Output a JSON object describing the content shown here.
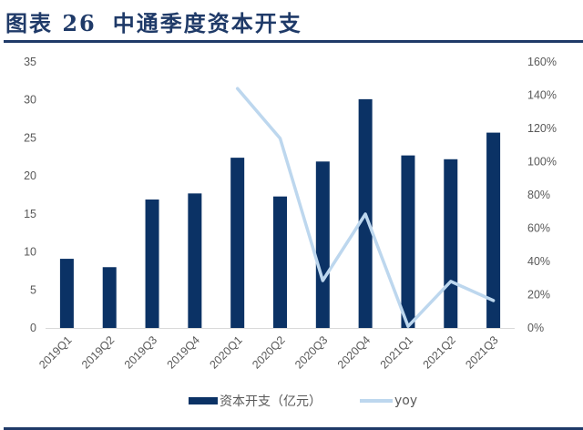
{
  "title": {
    "label": "图表 26",
    "text": "中通季度资本开支"
  },
  "colors": {
    "bar": "#0b3265",
    "line": "#bdd7ee",
    "title": "#1f3a68",
    "axis_text": "#595959",
    "axis_line": "#d9d9d9"
  },
  "legend": {
    "bar_label": "资本开支（亿元）",
    "line_label": "yoy"
  },
  "chart_data": {
    "type": "bar+line",
    "title": "中通季度资本开支",
    "categories": [
      "2019Q1",
      "2019Q2",
      "2019Q3",
      "2019Q4",
      "2020Q1",
      "2020Q2",
      "2020Q3",
      "2020Q4",
      "2021Q1",
      "2021Q2",
      "2021Q3"
    ],
    "series": [
      {
        "name": "资本开支（亿元）",
        "type": "bar",
        "axis": "left",
        "values": [
          9.1,
          8.0,
          16.9,
          17.7,
          22.4,
          17.3,
          21.9,
          30.1,
          22.7,
          22.2,
          25.7
        ]
      },
      {
        "name": "yoy",
        "type": "line",
        "axis": "right",
        "values": [
          null,
          null,
          null,
          null,
          144,
          114,
          28.5,
          68.5,
          1,
          28,
          16.5
        ],
        "unit": "%"
      }
    ],
    "y_left": {
      "min": 0,
      "max": 35,
      "ticks": [
        "0",
        "5",
        "10",
        "15",
        "20",
        "25",
        "30",
        "35"
      ]
    },
    "y_right": {
      "min": 0,
      "max": 160,
      "ticks": [
        "0%",
        "20%",
        "40%",
        "60%",
        "80%",
        "100%",
        "120%",
        "140%",
        "160%"
      ]
    },
    "xlabel": "",
    "ylabel": "",
    "grid": false,
    "legend_position": "bottom"
  }
}
